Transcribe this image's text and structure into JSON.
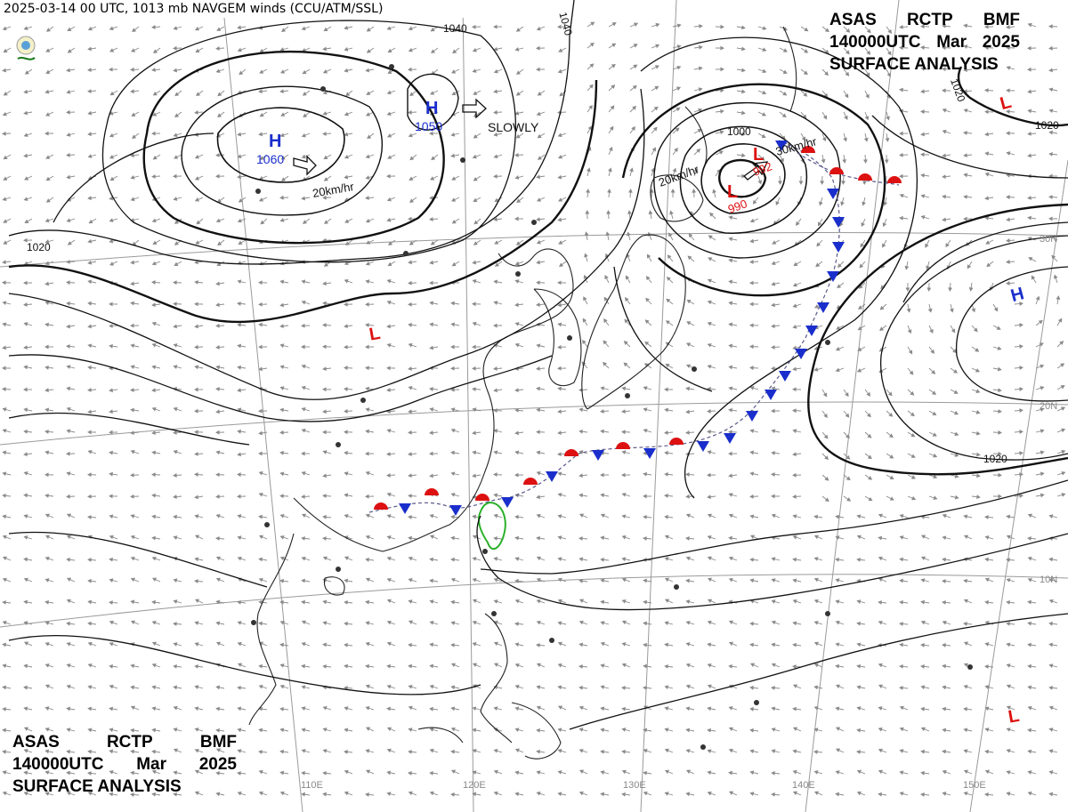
{
  "header": {
    "text": "2025-03-14 00 UTC, 1013 mb NAVGEM winds (CCU/ATM/SSL)"
  },
  "logo": {
    "label": "SSL"
  },
  "title_block": {
    "line1": [
      "ASAS",
      "RCTP",
      "BMF"
    ],
    "line2": [
      "140000UTC",
      "Mar",
      "2025"
    ],
    "line3": "SURFACE ANALYSIS"
  },
  "lat_labels": [
    "30N",
    "20N",
    "10N"
  ],
  "lon_labels": [
    "110E",
    "120E",
    "130E",
    "140E",
    "150E"
  ],
  "pressure_centers": [
    {
      "type": "H",
      "value": "1060",
      "color": "#1a2ecc"
    },
    {
      "type": "H",
      "value": "1050",
      "color": "#1a2ecc"
    },
    {
      "type": "H",
      "value": "",
      "color": "#1a2ecc"
    },
    {
      "type": "L",
      "value": "992",
      "color": "#dd1111"
    },
    {
      "type": "L",
      "value": "990",
      "color": "#dd1111"
    },
    {
      "type": "L",
      "value": "",
      "color": "#dd1111"
    },
    {
      "type": "L",
      "value": "",
      "color": "#dd1111"
    },
    {
      "type": "L",
      "value": "",
      "color": "#dd1111"
    }
  ],
  "isobar_labels": [
    "1040",
    "1040",
    "1020",
    "1020",
    "1020",
    "1020",
    "1000"
  ],
  "motion_labels": [
    "SLOWLY",
    "20km/hr",
    "20km/hr",
    "30km/hr"
  ],
  "colors": {
    "cold_front": "#1a2ecc",
    "warm_front": "#dd1111",
    "taiwan_outline": "#2bb02b"
  }
}
